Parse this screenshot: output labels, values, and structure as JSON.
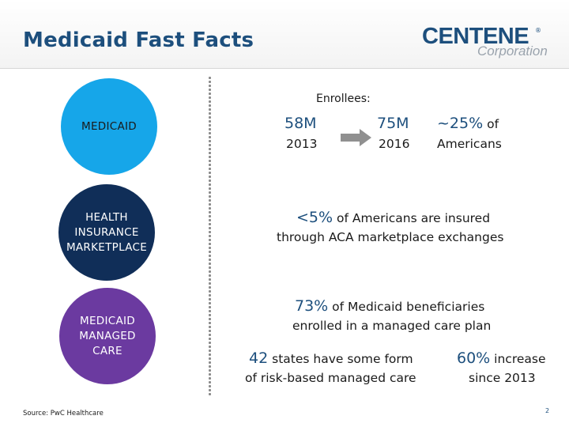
{
  "header": {
    "title": "Medicaid Fast Facts",
    "logo_main": "CENTENE",
    "logo_reg": "®",
    "logo_sub": "Corporation"
  },
  "circles": [
    {
      "label": "MEDICAID",
      "color": "#16a6e9"
    },
    {
      "label": "HEALTH\nINSURANCE\nMARKETPLACE",
      "color": "#102e58"
    },
    {
      "label": "MEDICAID\nMANAGED\nCARE",
      "color": "#6b3aa0"
    }
  ],
  "medicaid": {
    "enrollees_label": "Enrollees:",
    "value_2013": "58M",
    "year_2013": "2013",
    "value_2016": "75M",
    "year_2016": "2016",
    "share_value": "~25%",
    "share_of": "of",
    "share_label": "Americans"
  },
  "marketplace": {
    "stat": "<5%",
    "line1_rest": "of Americans are insured",
    "line2": "through ACA marketplace exchanges"
  },
  "managed_care": {
    "stat": "73%",
    "line1_rest": "of Medicaid beneficiaries",
    "line2": "enrolled in a managed care plan",
    "states_value": "42",
    "states_rest": "states have some form",
    "states_line2": "of risk-based managed care",
    "increase_value": "60%",
    "increase_rest": "increase",
    "increase_line2": "since 2013"
  },
  "footer": {
    "source": "Source: PwC Healthcare",
    "page_number": "2"
  },
  "colors": {
    "title_blue": "#1d4f7d",
    "medicaid_circle": "#16a6e9",
    "marketplace_circle": "#102e58",
    "managed_care_circle": "#6b3aa0",
    "arrow_gray": "#909090"
  }
}
